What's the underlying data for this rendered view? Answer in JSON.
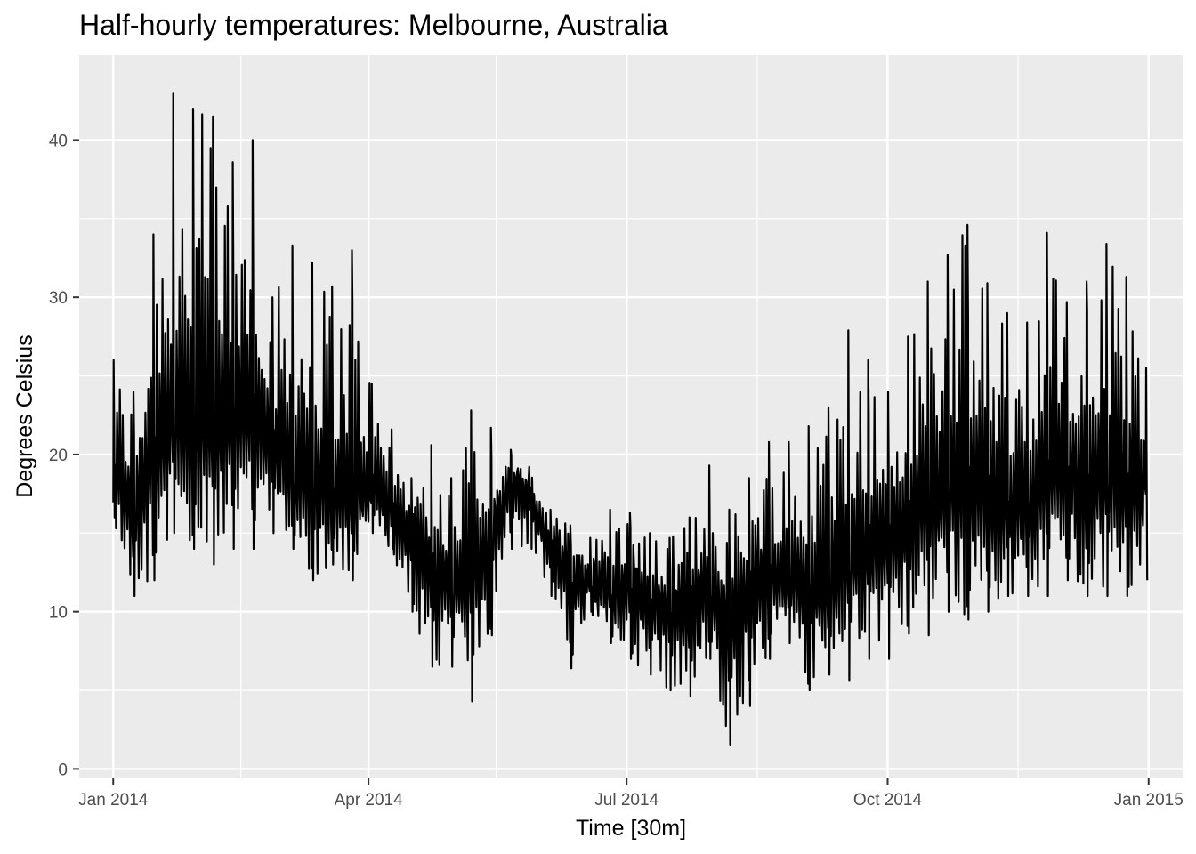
{
  "chart_data": {
    "type": "line",
    "title": "Half-hourly temperatures: Melbourne, Australia",
    "xlabel": "Time [30m]",
    "ylabel": "Degrees Celsius",
    "x_tick_labels": [
      "Jan 2014",
      "Apr 2014",
      "Jul 2014",
      "Oct 2014",
      "Jan 2015"
    ],
    "x_tick_dates": [
      "2014-01-01",
      "2014-04-01",
      "2014-07-01",
      "2014-10-01",
      "2015-01-01"
    ],
    "x_minor_dates": [
      "2014-02-15",
      "2014-05-16",
      "2014-08-16",
      "2014-11-16"
    ],
    "y_ticks": [
      0,
      10,
      20,
      30,
      40
    ],
    "y_minor": [
      5,
      15,
      25,
      35
    ],
    "xlim": [
      "2013-12-20",
      "2015-01-13"
    ],
    "ylim": [
      -0.6,
      45.4
    ],
    "grid": true,
    "series": [
      {
        "color": "#000000",
        "x": [
          "2014-01-01",
          "2014-01-08",
          "2014-01-15",
          "2014-01-22",
          "2014-01-29",
          "2014-02-05",
          "2014-02-12",
          "2014-02-19",
          "2014-02-26",
          "2014-03-05",
          "2014-03-12",
          "2014-03-19",
          "2014-03-26",
          "2014-04-02",
          "2014-04-09",
          "2014-04-16",
          "2014-04-23",
          "2014-04-30",
          "2014-05-07",
          "2014-05-14",
          "2014-05-21",
          "2014-05-28",
          "2014-06-04",
          "2014-06-11",
          "2014-06-18",
          "2014-06-25",
          "2014-07-02",
          "2014-07-09",
          "2014-07-16",
          "2014-07-23",
          "2014-07-30",
          "2014-08-06",
          "2014-08-13",
          "2014-08-20",
          "2014-08-27",
          "2014-09-03",
          "2014-09-10",
          "2014-09-17",
          "2014-09-24",
          "2014-10-01",
          "2014-10-08",
          "2014-10-15",
          "2014-10-22",
          "2014-10-29",
          "2014-11-05",
          "2014-11-12",
          "2014-11-19",
          "2014-11-26",
          "2014-12-03",
          "2014-12-10",
          "2014-12-17",
          "2014-12-24",
          "2014-12-31"
        ],
        "y_min": [
          16,
          11,
          12,
          15,
          14,
          13,
          14,
          14,
          15,
          14,
          12,
          13,
          12,
          15,
          14,
          10,
          6.5,
          6.5,
          4.3,
          8.5,
          14,
          14,
          11,
          6.4,
          10,
          8,
          7,
          6,
          5,
          4.6,
          7,
          1.5,
          4,
          7,
          8,
          5,
          6,
          5.6,
          7,
          7,
          8.6,
          8.5,
          10,
          9.5,
          10,
          11,
          11,
          11,
          12,
          11,
          11,
          11,
          12
        ],
        "y_max": [
          26,
          24,
          34,
          43,
          42,
          41.5,
          38.6,
          40,
          30,
          33.3,
          32.2,
          30.7,
          33,
          24.5,
          21.6,
          18.5,
          20.6,
          18.5,
          22.8,
          21.7,
          20.3,
          17.8,
          16.5,
          15.5,
          14.7,
          16.5,
          16.3,
          15,
          14.7,
          16,
          19.3,
          16.5,
          18.5,
          20.8,
          20.8,
          21.8,
          23,
          27.9,
          26,
          24,
          27.5,
          31,
          32.7,
          34.6,
          30.9,
          29,
          28.4,
          34.1,
          29.7,
          31,
          33.4,
          31.3,
          25.5
        ],
        "y_mid": [
          19,
          16.5,
          21,
          22,
          23,
          21.5,
          22.5,
          23,
          20.5,
          19,
          18.5,
          17.5,
          17.5,
          18,
          16.5,
          15,
          12.5,
          12,
          13,
          15,
          18.5,
          18,
          14,
          13,
          12,
          11.5,
          12,
          11,
          10,
          10.5,
          11.5,
          9,
          12,
          12,
          12.5,
          11.5,
          12.5,
          13.5,
          14.5,
          14.5,
          16,
          17,
          18,
          18.5,
          17.5,
          17,
          16.5,
          19,
          19,
          18.5,
          19,
          18.5,
          17.5
        ]
      }
    ]
  }
}
